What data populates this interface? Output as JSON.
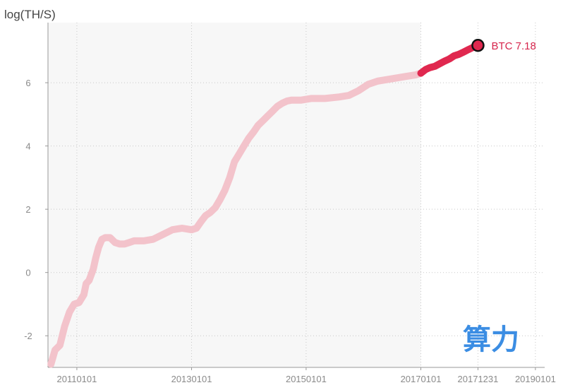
{
  "chart_data": {
    "type": "line",
    "ylabel": "log(TH/S)",
    "ylim": [
      -3,
      7.9
    ],
    "yticks": [
      -2,
      0,
      2,
      4,
      6
    ],
    "x_range": [
      "2010-07-01",
      "2019-03-01"
    ],
    "xticks": [
      "20110101",
      "20130101",
      "20150101",
      "20170101",
      "20171231",
      "20190101"
    ],
    "grid": "dotted",
    "shaded_region": [
      "2010-07-01",
      "2017-01-01"
    ],
    "series": [
      {
        "name": "BTC",
        "highlight_from": "2017-01-01",
        "points": [
          [
            "2010-07-20",
            -2.9
          ],
          [
            "2010-08-15",
            -2.45
          ],
          [
            "2010-09-15",
            -2.3
          ],
          [
            "2010-10-15",
            -1.7
          ],
          [
            "2010-11-15",
            -1.25
          ],
          [
            "2010-12-15",
            -1.0
          ],
          [
            "2011-01-15",
            -0.95
          ],
          [
            "2011-02-15",
            -0.7
          ],
          [
            "2011-03-01",
            -0.35
          ],
          [
            "2011-03-20",
            -0.25
          ],
          [
            "2011-04-15",
            0.1
          ],
          [
            "2011-05-01",
            0.45
          ],
          [
            "2011-05-20",
            0.8
          ],
          [
            "2011-06-10",
            1.05
          ],
          [
            "2011-07-01",
            1.1
          ],
          [
            "2011-08-01",
            1.1
          ],
          [
            "2011-09-01",
            0.95
          ],
          [
            "2011-10-01",
            0.9
          ],
          [
            "2011-11-01",
            0.9
          ],
          [
            "2011-12-01",
            0.95
          ],
          [
            "2012-01-01",
            1.0
          ],
          [
            "2012-03-01",
            1.0
          ],
          [
            "2012-05-01",
            1.05
          ],
          [
            "2012-07-01",
            1.2
          ],
          [
            "2012-09-01",
            1.35
          ],
          [
            "2012-11-01",
            1.4
          ],
          [
            "2013-01-01",
            1.35
          ],
          [
            "2013-02-01",
            1.4
          ],
          [
            "2013-03-01",
            1.6
          ],
          [
            "2013-04-01",
            1.8
          ],
          [
            "2013-05-01",
            1.9
          ],
          [
            "2013-06-01",
            2.05
          ],
          [
            "2013-07-01",
            2.3
          ],
          [
            "2013-08-01",
            2.6
          ],
          [
            "2013-09-01",
            3.0
          ],
          [
            "2013-10-01",
            3.5
          ],
          [
            "2013-11-01",
            3.75
          ],
          [
            "2013-12-01",
            4.0
          ],
          [
            "2014-01-01",
            4.25
          ],
          [
            "2014-02-01",
            4.45
          ],
          [
            "2014-03-01",
            4.65
          ],
          [
            "2014-04-01",
            4.8
          ],
          [
            "2014-05-01",
            4.95
          ],
          [
            "2014-06-01",
            5.1
          ],
          [
            "2014-07-01",
            5.25
          ],
          [
            "2014-08-01",
            5.35
          ],
          [
            "2014-09-01",
            5.42
          ],
          [
            "2014-10-01",
            5.45
          ],
          [
            "2014-12-01",
            5.45
          ],
          [
            "2015-02-01",
            5.5
          ],
          [
            "2015-05-01",
            5.5
          ],
          [
            "2015-08-01",
            5.55
          ],
          [
            "2015-10-01",
            5.6
          ],
          [
            "2015-12-01",
            5.75
          ],
          [
            "2016-02-01",
            5.95
          ],
          [
            "2016-04-01",
            6.05
          ],
          [
            "2016-06-01",
            6.1
          ],
          [
            "2016-08-01",
            6.15
          ],
          [
            "2016-10-01",
            6.2
          ],
          [
            "2016-12-01",
            6.25
          ],
          [
            "2017-01-01",
            6.3
          ],
          [
            "2017-02-01",
            6.42
          ],
          [
            "2017-03-01",
            6.48
          ],
          [
            "2017-04-01",
            6.52
          ],
          [
            "2017-05-01",
            6.6
          ],
          [
            "2017-06-01",
            6.68
          ],
          [
            "2017-07-01",
            6.75
          ],
          [
            "2017-08-01",
            6.85
          ],
          [
            "2017-09-01",
            6.9
          ],
          [
            "2017-10-01",
            6.97
          ],
          [
            "2017-11-01",
            7.05
          ],
          [
            "2017-12-01",
            7.12
          ],
          [
            "2017-12-31",
            7.18
          ]
        ]
      }
    ],
    "end_label": "BTC 7.18",
    "end_date": "2017-12-31",
    "end_value": 7.18,
    "colors": {
      "line_past": "#f3c3cb",
      "line_recent": "#e0284f",
      "shade": "#f7f7f7",
      "grid": "#c8c8c8",
      "end_label": "#d6254c"
    }
  },
  "watermark_text": "算力"
}
